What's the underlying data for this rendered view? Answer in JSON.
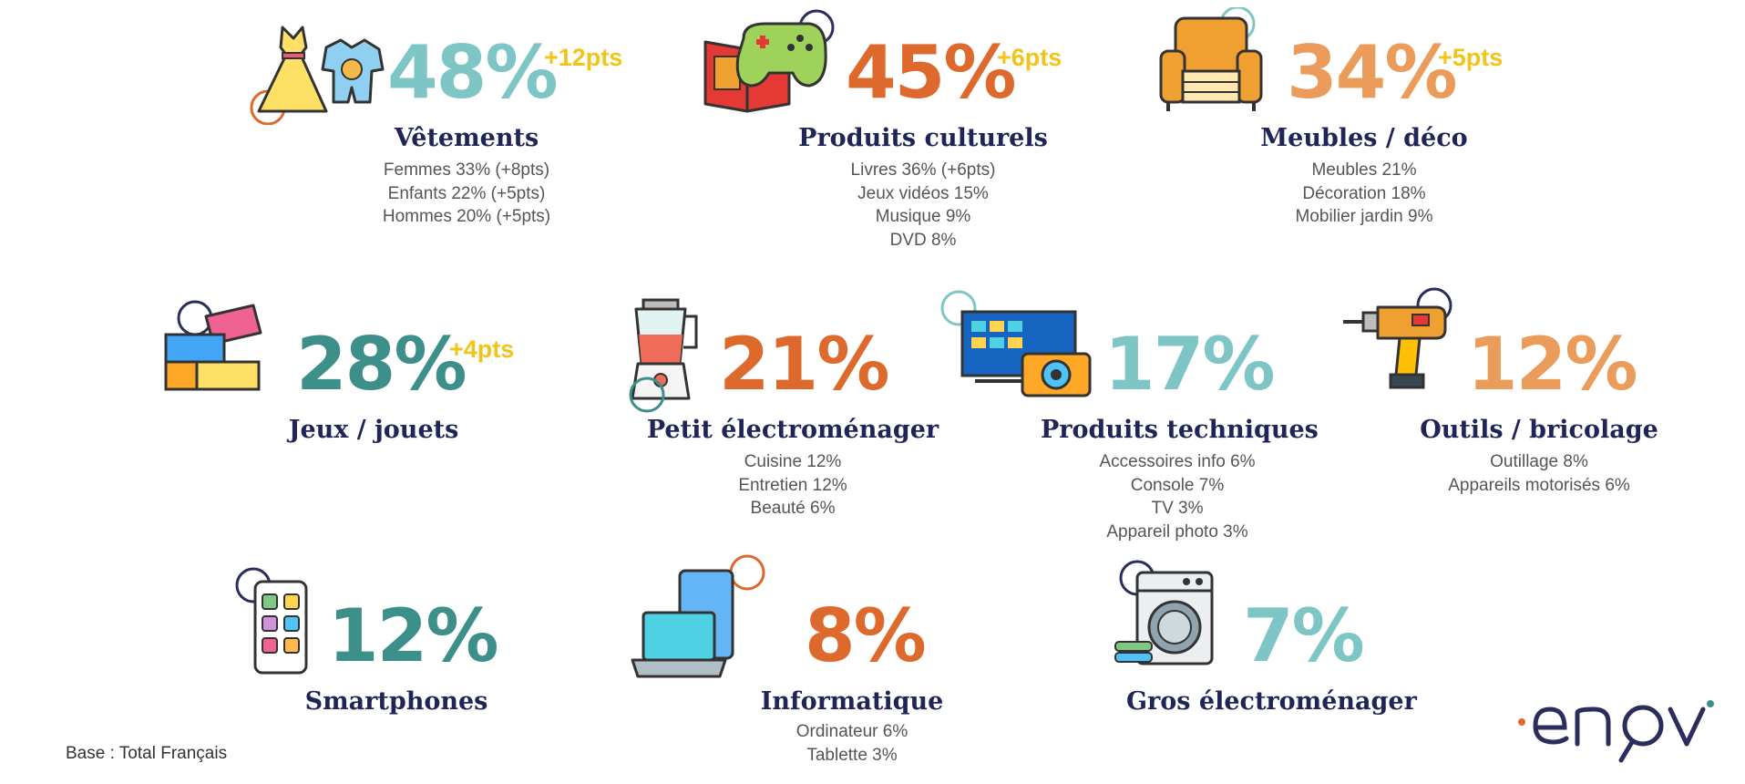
{
  "colors": {
    "teal_light": "#7ec6c5",
    "teal_dark": "#3d8f8a",
    "orange_dark": "#dd6a2c",
    "orange_light": "#eb9c5a",
    "gold": "#f0c419",
    "navy": "#1f2557"
  },
  "categories": [
    {
      "icon": "dress-and-babysuit-icon",
      "percent": "48%",
      "delta": "+12pts",
      "name": "Vêtements",
      "details": [
        "Femmes 33% (+8pts)",
        "Enfants 22% (+5pts)",
        "Hommes 20% (+5pts)"
      ]
    },
    {
      "icon": "book-and-gamepad-icon",
      "percent": "45%",
      "delta": "+6pts",
      "name": "Produits culturels",
      "details": [
        "Livres 36% (+6pts)",
        "Jeux vidéos 15%",
        "Musique 9%",
        "DVD 8%"
      ]
    },
    {
      "icon": "armchair-icon",
      "percent": "34%",
      "delta": "+5pts",
      "name": "Meubles / déco",
      "details": [
        "Meubles 21%",
        "Décoration 18%",
        "Mobilier jardin 9%"
      ]
    },
    {
      "icon": "toy-bricks-icon",
      "percent": "28%",
      "delta": "+4pts",
      "name": "Jeux / jouets",
      "details": []
    },
    {
      "icon": "blender-icon",
      "percent": "21%",
      "delta": "",
      "name": "Petit électroménager",
      "details": [
        "Cuisine 12%",
        "Entretien 12%",
        "Beauté 6%"
      ]
    },
    {
      "icon": "tv-and-camera-icon",
      "percent": "17%",
      "delta": "",
      "name": "Produits techniques",
      "details": [
        "Accessoires info 6%",
        "Console 7%",
        "TV 3%",
        "Appareil photo 3%"
      ]
    },
    {
      "icon": "power-drill-icon",
      "percent": "12%",
      "delta": "",
      "name": "Outils / bricolage",
      "details": [
        "Outillage 8%",
        "Appareils motorisés 6%"
      ]
    },
    {
      "icon": "smartphone-icon",
      "percent": "12%",
      "delta": "",
      "name": "Smartphones",
      "details": []
    },
    {
      "icon": "laptop-and-tablet-icon",
      "percent": "8%",
      "delta": "",
      "name": "Informatique",
      "details": [
        "Ordinateur 6%",
        "Tablette 3%"
      ]
    },
    {
      "icon": "washing-machine-icon",
      "percent": "7%",
      "delta": "",
      "name": "Gros électroménager",
      "details": []
    }
  ],
  "footnote": "Base : Total Français",
  "logo": "enov"
}
